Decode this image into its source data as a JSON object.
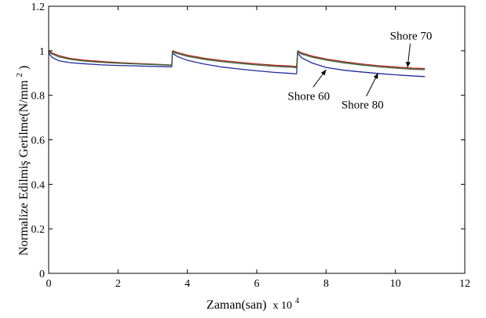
{
  "chart_data": {
    "type": "line",
    "title": "",
    "xlabel": "Zaman(san)",
    "x_multiplier": "x 10",
    "x_multiplier_exp": "4",
    "ylabel": "Normalize Edilmiş Gerilme(N/mm",
    "ylabel_sup": "2",
    "ylabel_close": ")",
    "xlim": [
      0,
      12
    ],
    "ylim": [
      0,
      1.2
    ],
    "xticks": [
      0,
      2,
      4,
      6,
      8,
      10,
      12
    ],
    "xtick_labels": [
      "0",
      "2",
      "4",
      "6",
      "8",
      "10",
      "12"
    ],
    "yticks": [
      0,
      0.2,
      0.4,
      0.6,
      0.8,
      1,
      1.2
    ],
    "ytick_labels": [
      "0",
      "0.2",
      "0.4",
      "0.6",
      "0.8",
      "1",
      "1.2"
    ],
    "grid": false,
    "series": [
      {
        "name": "Shore 60",
        "color": "#1f2a9c",
        "segments": [
          {
            "x": [
              0.0,
              0.1,
              0.3,
              0.6,
              1.0,
              1.5,
              2.0,
              2.5,
              3.0,
              3.55
            ],
            "y": [
              0.99,
              0.97,
              0.955,
              0.947,
              0.942,
              0.937,
              0.934,
              0.932,
              0.93,
              0.928
            ]
          },
          {
            "x": [
              3.57,
              3.7,
              4.0,
              4.5,
              5.0,
              5.5,
              6.0,
              6.5,
              7.0,
              7.15
            ],
            "y": [
              0.99,
              0.975,
              0.957,
              0.94,
              0.927,
              0.918,
              0.91,
              0.903,
              0.898,
              0.896
            ]
          },
          {
            "x": [
              7.18,
              7.3,
              7.6,
              8.0,
              8.5,
              9.0,
              9.5,
              10.0,
              10.5,
              10.85
            ],
            "y": [
              0.99,
              0.968,
              0.945,
              0.925,
              0.913,
              0.905,
              0.898,
              0.892,
              0.887,
              0.884
            ]
          }
        ]
      },
      {
        "name": "Shore 70",
        "color": "#a51919",
        "segments": [
          {
            "x": [
              0.0,
              0.1,
              0.3,
              0.6,
              1.0,
              1.5,
              2.0,
              2.5,
              3.0,
              3.55
            ],
            "y": [
              1.0,
              0.99,
              0.978,
              0.966,
              0.958,
              0.952,
              0.947,
              0.943,
              0.94,
              0.936
            ]
          },
          {
            "x": [
              3.57,
              3.7,
              4.0,
              4.5,
              5.0,
              5.5,
              6.0,
              6.5,
              7.0,
              7.15
            ],
            "y": [
              1.0,
              0.993,
              0.98,
              0.966,
              0.956,
              0.948,
              0.941,
              0.935,
              0.931,
              0.929
            ]
          },
          {
            "x": [
              7.18,
              7.3,
              7.6,
              8.0,
              8.5,
              9.0,
              9.5,
              10.0,
              10.5,
              10.85
            ],
            "y": [
              1.0,
              0.99,
              0.976,
              0.963,
              0.951,
              0.941,
              0.933,
              0.927,
              0.922,
              0.92
            ]
          }
        ]
      },
      {
        "name": "Shore 80",
        "color": "#3a6b3a",
        "segments": [
          {
            "x": [
              0.0,
              0.1,
              0.3,
              0.6,
              1.0,
              1.5,
              2.0,
              2.5,
              3.0,
              3.55
            ],
            "y": [
              0.995,
              0.985,
              0.972,
              0.962,
              0.954,
              0.948,
              0.944,
              0.941,
              0.938,
              0.935
            ]
          },
          {
            "x": [
              3.57,
              3.7,
              4.0,
              4.5,
              5.0,
              5.5,
              6.0,
              6.5,
              7.0,
              7.15
            ],
            "y": [
              0.995,
              0.988,
              0.975,
              0.961,
              0.951,
              0.943,
              0.936,
              0.93,
              0.926,
              0.924
            ]
          },
          {
            "x": [
              7.18,
              7.3,
              7.6,
              8.0,
              8.5,
              9.0,
              9.5,
              10.0,
              10.5,
              10.85
            ],
            "y": [
              0.995,
              0.985,
              0.971,
              0.958,
              0.946,
              0.936,
              0.928,
              0.922,
              0.917,
              0.915
            ]
          }
        ]
      }
    ],
    "annotations": [
      {
        "text": "Shore 70",
        "x": 10.45,
        "y": 1.05,
        "arrow_x": 10.35,
        "arrow_y": 0.925
      },
      {
        "text": "Shore 60",
        "x": 7.5,
        "y": 0.78,
        "arrow_x": 8.0,
        "arrow_y": 0.915
      },
      {
        "text": "Shore 80",
        "x": 9.05,
        "y": 0.74,
        "arrow_x": 9.5,
        "arrow_y": 0.9
      }
    ]
  }
}
